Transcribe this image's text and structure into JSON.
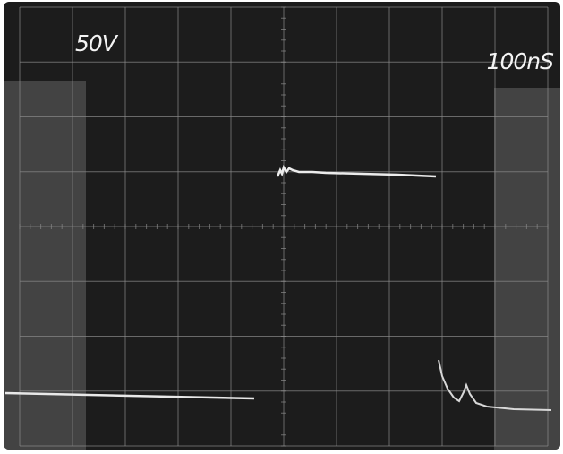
{
  "scope": {
    "volts_per_div": "50V",
    "time_per_div": "100nS",
    "colors": {
      "screen": "#1c1c1c",
      "glare": "#4a4a4a",
      "grid": "#8a8a8a",
      "trace": "#e8e8e8"
    }
  }
}
